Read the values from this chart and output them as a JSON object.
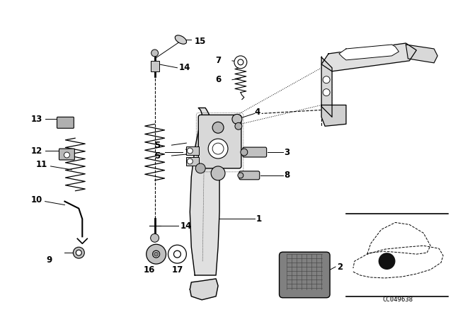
{
  "bg_color": "#ffffff",
  "fig_width": 6.4,
  "fig_height": 4.48,
  "dpi": 100,
  "line_color": "#000000",
  "text_color": "#000000",
  "diagram_code_text": "CC049638"
}
